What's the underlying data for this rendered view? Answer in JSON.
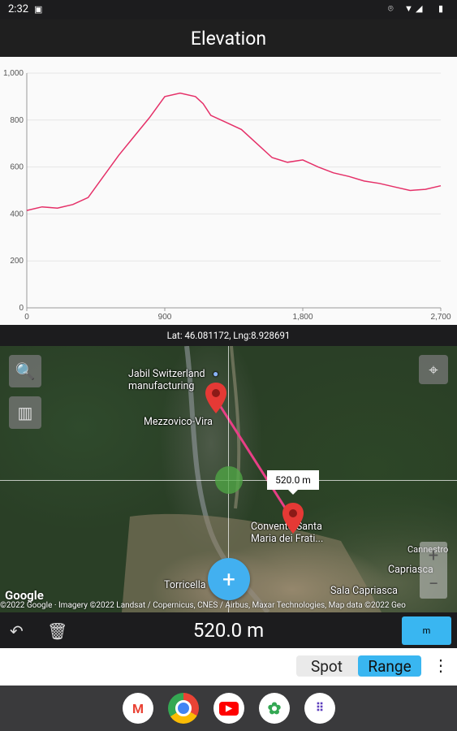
{
  "status_bar": {
    "time": "2:32"
  },
  "title": "Elevation",
  "chart_data": {
    "type": "line",
    "x": [
      0,
      100,
      200,
      300,
      400,
      500,
      600,
      700,
      800,
      900,
      1000,
      1100,
      1150,
      1200,
      1300,
      1400,
      1500,
      1600,
      1700,
      1800,
      1900,
      2000,
      2100,
      2200,
      2300,
      2400,
      2500,
      2600,
      2700
    ],
    "y": [
      415,
      430,
      425,
      440,
      470,
      560,
      650,
      730,
      810,
      900,
      915,
      900,
      870,
      820,
      790,
      760,
      700,
      640,
      620,
      630,
      600,
      575,
      560,
      540,
      530,
      515,
      500,
      505,
      520
    ],
    "xlim": [
      0,
      2700
    ],
    "ylim": [
      0,
      1000
    ],
    "x_ticks": [
      "0",
      "900",
      "1,800",
      "2,700"
    ],
    "y_ticks": [
      "0",
      "200",
      "400",
      "600",
      "800",
      "1,000"
    ],
    "line_color": "#e53068",
    "grid": true
  },
  "coord_bar": "Lat: 46.081172, Lng:8.928691",
  "map": {
    "labels": {
      "jabil": "Jabil Switzerland manufacturing",
      "mezzovico": "Mezzovico-Vira",
      "convento": "Convento Santa Maria dei Frati...",
      "torricella": "Torricella",
      "capriasca": "Capriasca",
      "sala": "Sala Capriasca",
      "cannestro": "Cannestro"
    },
    "distance_marker": "520.0 m",
    "attribution": "©2022 Google · Imagery ©2022 Landsat / Copernicus, CNES / Airbus, Maxar Technologies, Map data ©2022 Geo",
    "google_logo": "Google"
  },
  "bottom": {
    "distance": "520.0 m",
    "unit": "m"
  },
  "mode": {
    "spot": "Spot",
    "range": "Range",
    "selected": "Range"
  }
}
